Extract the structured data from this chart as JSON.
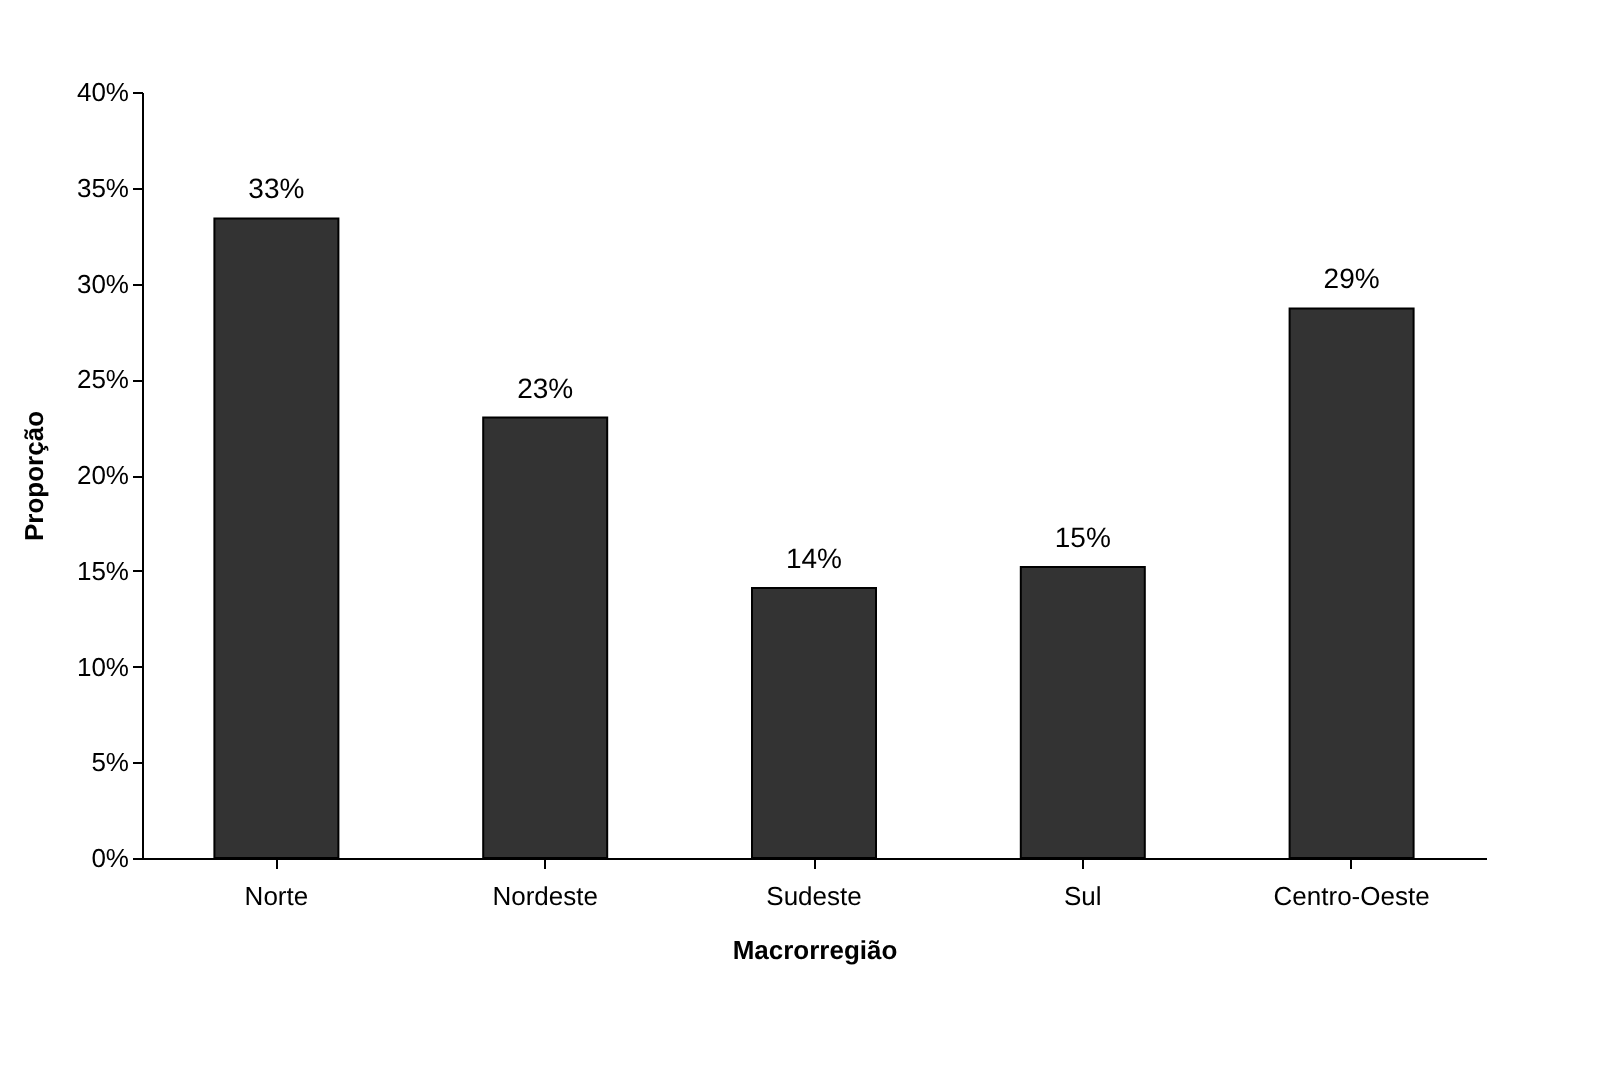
{
  "chart_data": {
    "type": "bar",
    "xlabel": "Macrorregião",
    "ylabel": "Proporção",
    "categories": [
      "Norte",
      "Nordeste",
      "Sudeste",
      "Sul",
      "Centro-Oeste"
    ],
    "values": [
      33.4,
      23,
      14.1,
      15.2,
      28.7
    ],
    "value_labels": [
      "33%",
      "23%",
      "14%",
      "15%",
      "29%"
    ],
    "color": "#333333",
    "ylim": [
      0,
      40
    ],
    "yticks": [
      {
        "value": 0,
        "label": "0%"
      },
      {
        "value": 5,
        "label": "5%"
      },
      {
        "value": 10,
        "label": "10%"
      },
      {
        "value": 15,
        "label": "15%"
      },
      {
        "value": 20,
        "label": "20%"
      },
      {
        "value": 25,
        "label": "25%"
      },
      {
        "value": 30,
        "label": "30%"
      },
      {
        "value": 35,
        "label": "35%"
      },
      {
        "value": 40,
        "label": "40%"
      }
    ],
    "grid": false
  }
}
